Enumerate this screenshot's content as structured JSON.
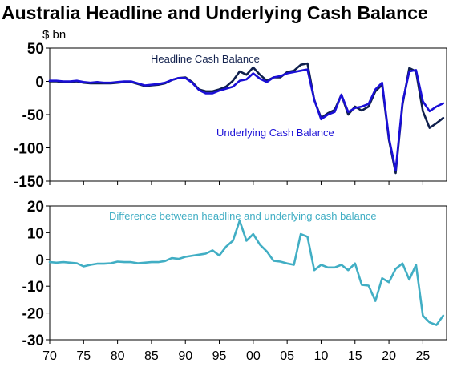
{
  "chart_data": {
    "title": "Australia Headline and Underlying Cash Balance",
    "unit_label": "$ bn",
    "colors": {
      "headline": "#0f1f4d",
      "underlying": "#1a0fd6",
      "difference": "#41aec4",
      "headline_label": "#14234f",
      "underlying_label": "#1a0fd6",
      "difference_label": "#41aec4"
    },
    "x_ticks": [
      "70",
      "75",
      "80",
      "85",
      "90",
      "95",
      "00",
      "05",
      "10",
      "15",
      "20",
      "25"
    ],
    "x_tick_values": [
      1970,
      1975,
      1980,
      1985,
      1990,
      1995,
      2000,
      2005,
      2010,
      2015,
      2020,
      2025
    ],
    "xlim": [
      1970,
      2028.5
    ],
    "panels": [
      {
        "type": "line",
        "ylim": [
          -150,
          50
        ],
        "yticks": [
          50,
          0,
          -50,
          -100,
          -150
        ],
        "ytick_labels": [
          "50",
          "0",
          "-50",
          "-100",
          "-150"
        ],
        "series": [
          {
            "name": "Headline Cash Balance",
            "color_key": "headline",
            "points": [
              [
                1970,
                0
              ],
              [
                1971,
                0
              ],
              [
                1972,
                -1
              ],
              [
                1973,
                -1
              ],
              [
                1974,
                0
              ],
              [
                1975,
                -2
              ],
              [
                1976,
                -3
              ],
              [
                1977,
                -3
              ],
              [
                1978,
                -3
              ],
              [
                1979,
                -3
              ],
              [
                1980,
                -2
              ],
              [
                1981,
                -1
              ],
              [
                1982,
                -1
              ],
              [
                1983,
                -4
              ],
              [
                1984,
                -7
              ],
              [
                1985,
                -6
              ],
              [
                1986,
                -5
              ],
              [
                1987,
                -3
              ],
              [
                1988,
                2
              ],
              [
                1989,
                5
              ],
              [
                1990,
                6
              ],
              [
                1991,
                -1
              ],
              [
                1992,
                -12
              ],
              [
                1993,
                -15
              ],
              [
                1994,
                -15
              ],
              [
                1995,
                -12
              ],
              [
                1996,
                -8
              ],
              [
                1997,
                1
              ],
              [
                1998,
                15
              ],
              [
                1999,
                10
              ],
              [
                2000,
                21
              ],
              [
                2001,
                10
              ],
              [
                2002,
                1
              ],
              [
                2003,
                6
              ],
              [
                2004,
                6
              ],
              [
                2005,
                14
              ],
              [
                2006,
                16
              ],
              [
                2007,
                25
              ],
              [
                2008,
                27
              ],
              [
                2009,
                -28
              ],
              [
                2010,
                -55
              ],
              [
                2011,
                -48
              ],
              [
                2012,
                -43
              ],
              [
                2013,
                -20
              ],
              [
                2014,
                -50
              ],
              [
                2015,
                -38
              ],
              [
                2016,
                -44
              ],
              [
                2017,
                -38
              ],
              [
                2018,
                -15
              ],
              [
                2019,
                -5
              ],
              [
                2020,
                -88
              ],
              [
                2021,
                -138
              ],
              [
                2022,
                -35
              ],
              [
                2023,
                20
              ],
              [
                2024,
                15
              ],
              [
                2025,
                -45
              ],
              [
                2026,
                -70
              ],
              [
                2027,
                -63
              ],
              [
                2028,
                -55
              ]
            ]
          },
          {
            "name": "Underlying Cash Balance",
            "color_key": "underlying",
            "points": [
              [
                1970,
                1
              ],
              [
                1971,
                1
              ],
              [
                1972,
                0
              ],
              [
                1973,
                0
              ],
              [
                1974,
                1
              ],
              [
                1975,
                -1
              ],
              [
                1976,
                -2
              ],
              [
                1977,
                -1
              ],
              [
                1978,
                -2
              ],
              [
                1979,
                -2
              ],
              [
                1980,
                -1
              ],
              [
                1981,
                0
              ],
              [
                1982,
                0
              ],
              [
                1983,
                -3
              ],
              [
                1984,
                -6
              ],
              [
                1985,
                -5
              ],
              [
                1986,
                -4
              ],
              [
                1987,
                -2
              ],
              [
                1988,
                2
              ],
              [
                1989,
                5
              ],
              [
                1990,
                5
              ],
              [
                1991,
                -2
              ],
              [
                1992,
                -13
              ],
              [
                1993,
                -18
              ],
              [
                1994,
                -18
              ],
              [
                1995,
                -14
              ],
              [
                1996,
                -11
              ],
              [
                1997,
                -8
              ],
              [
                1998,
                1
              ],
              [
                1999,
                3
              ],
              [
                2000,
                12
              ],
              [
                2001,
                4
              ],
              [
                2002,
                -1
              ],
              [
                2003,
                6
              ],
              [
                2004,
                8
              ],
              [
                2005,
                12
              ],
              [
                2006,
                14
              ],
              [
                2007,
                16
              ],
              [
                2008,
                18
              ],
              [
                2009,
                -28
              ],
              [
                2010,
                -57
              ],
              [
                2011,
                -50
              ],
              [
                2012,
                -46
              ],
              [
                2013,
                -20
              ],
              [
                2014,
                -46
              ],
              [
                2015,
                -40
              ],
              [
                2016,
                -38
              ],
              [
                2017,
                -34
              ],
              [
                2018,
                -12
              ],
              [
                2019,
                -2
              ],
              [
                2020,
                -85
              ],
              [
                2021,
                -134
              ],
              [
                2022,
                -32
              ],
              [
                2023,
                15
              ],
              [
                2024,
                17
              ],
              [
                2025,
                -30
              ],
              [
                2026,
                -45
              ],
              [
                2027,
                -38
              ],
              [
                2028,
                -33
              ]
            ]
          }
        ],
        "annotations": [
          {
            "text": "Headline Cash Balance",
            "color_key": "headline_label"
          },
          {
            "text": "Underlying Cash Balance",
            "color_key": "underlying_label"
          }
        ]
      },
      {
        "type": "line",
        "ylim": [
          -30,
          20
        ],
        "yticks": [
          20,
          10,
          0,
          -10,
          -20,
          -30
        ],
        "ytick_labels": [
          "20",
          "10",
          "0",
          "-10",
          "-20",
          "-30"
        ],
        "series": [
          {
            "name": "Difference between headline and underlying cash balance",
            "color_key": "difference",
            "points": [
              [
                1970,
                -1
              ],
              [
                1971,
                -1.2
              ],
              [
                1972,
                -1
              ],
              [
                1973,
                -1.2
              ],
              [
                1974,
                -1.4
              ],
              [
                1975,
                -2.6
              ],
              [
                1976,
                -2
              ],
              [
                1977,
                -1.6
              ],
              [
                1978,
                -1.6
              ],
              [
                1979,
                -1.4
              ],
              [
                1980,
                -0.8
              ],
              [
                1981,
                -1
              ],
              [
                1982,
                -1
              ],
              [
                1983,
                -1.4
              ],
              [
                1984,
                -1.2
              ],
              [
                1985,
                -1
              ],
              [
                1986,
                -1
              ],
              [
                1987,
                -0.6
              ],
              [
                1988,
                0.5
              ],
              [
                1989,
                0.2
              ],
              [
                1990,
                1
              ],
              [
                1991,
                1.4
              ],
              [
                1992,
                1.8
              ],
              [
                1993,
                2.2
              ],
              [
                1994,
                3.4
              ],
              [
                1995,
                1.5
              ],
              [
                1996,
                4.8
              ],
              [
                1997,
                7
              ],
              [
                1998,
                14.5
              ],
              [
                1999,
                7
              ],
              [
                2000,
                9.5
              ],
              [
                2001,
                5.5
              ],
              [
                2002,
                3
              ],
              [
                2003,
                -0.5
              ],
              [
                2004,
                -0.8
              ],
              [
                2005,
                -1.5
              ],
              [
                2006,
                -2
              ],
              [
                2007,
                9.5
              ],
              [
                2008,
                8.5
              ],
              [
                2009,
                -4
              ],
              [
                2010,
                -2
              ],
              [
                2011,
                -3
              ],
              [
                2012,
                -3
              ],
              [
                2013,
                -2
              ],
              [
                2014,
                -4
              ],
              [
                2015,
                -1.5
              ],
              [
                2016,
                -9.5
              ],
              [
                2017,
                -9.8
              ],
              [
                2018,
                -15.5
              ],
              [
                2019,
                -7
              ],
              [
                2020,
                -8.5
              ],
              [
                2021,
                -3.5
              ],
              [
                2022,
                -1.5
              ],
              [
                2023,
                -7.5
              ],
              [
                2024,
                -2
              ],
              [
                2025,
                -21
              ],
              [
                2026,
                -23.5
              ],
              [
                2027,
                -24.5
              ],
              [
                2028,
                -21
              ]
            ]
          }
        ],
        "annotations": [
          {
            "text": "Difference between headline and underlying cash balance",
            "color_key": "difference_label"
          }
        ]
      }
    ]
  }
}
